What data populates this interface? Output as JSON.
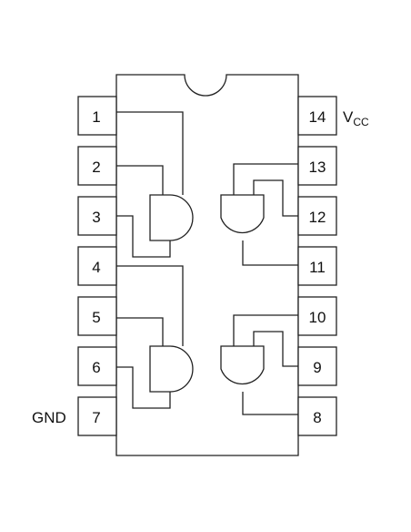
{
  "chip": {
    "pins": [
      {
        "number": "1"
      },
      {
        "number": "2"
      },
      {
        "number": "3"
      },
      {
        "number": "4"
      },
      {
        "number": "5"
      },
      {
        "number": "6"
      },
      {
        "number": "7"
      },
      {
        "number": "8"
      },
      {
        "number": "9"
      },
      {
        "number": "10"
      },
      {
        "number": "11"
      },
      {
        "number": "12"
      },
      {
        "number": "13"
      },
      {
        "number": "14"
      }
    ],
    "vcc": {
      "main": "V",
      "sub": "CC"
    },
    "gnd": "GND"
  }
}
